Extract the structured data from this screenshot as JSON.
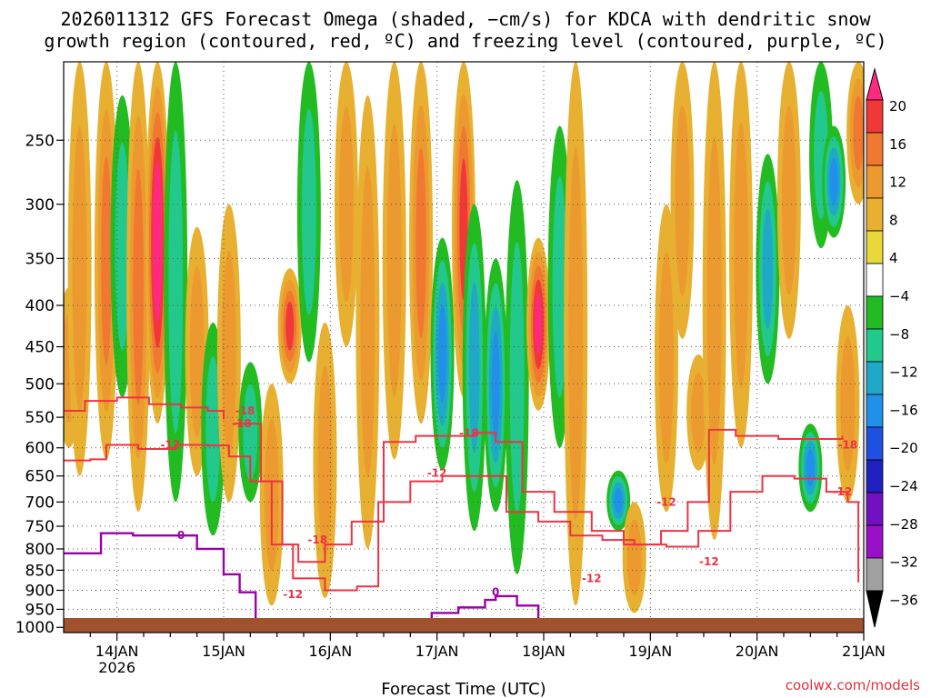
{
  "title_line1": "2026011312 GFS Forecast Omega (shaded, −cm/s) for KDCA with dendritic snow",
  "title_line2": "growth region (contoured, red, ºC) and freezing level (contoured, purple, ºC)",
  "credit": "coolwx.com/models",
  "chart_data": {
    "type": "heatmap",
    "title": "2026011312 GFS Forecast Omega (shaded, −cm/s) for KDCA with dendritic snow growth region (contoured, red, ºC) and freezing level (contoured, purple, ºC)",
    "xlabel": "Forecast Time (UTC)",
    "ylabel": "",
    "x_ticks": [
      "14JAN",
      "15JAN",
      "16JAN",
      "17JAN",
      "18JAN",
      "19JAN",
      "20JAN",
      "21JAN"
    ],
    "x_tick_sublabel": "2026",
    "xlim_days": [
      13.5,
      21.0
    ],
    "y_ticks": [
      250,
      300,
      350,
      400,
      450,
      500,
      550,
      600,
      650,
      700,
      750,
      800,
      850,
      900,
      950,
      1000
    ],
    "ylim_hpa": [
      200,
      1015
    ],
    "colorbar": {
      "levels": [
        "20",
        "16",
        "12",
        "8",
        "4",
        "−4",
        "−8",
        "−12",
        "−16",
        "−20",
        "−24",
        "−28",
        "−32",
        "−36"
      ],
      "colors": [
        "#ff2a80",
        "#f03838",
        "#f07830",
        "#ec9a30",
        "#e8b030",
        "#e8d83a",
        "#ffffff",
        "#22bb22",
        "#22c88c",
        "#20a8c8",
        "#2090e8",
        "#2050e0",
        "#2020c0",
        "#7010c0",
        "#9a10c8",
        "#a0a0a0",
        "#000000"
      ]
    },
    "contour_labels_red": [
      "-18",
      "-12",
      "-12",
      "-18",
      "-12",
      "-12",
      "-18",
      "-12",
      "-18",
      "-12",
      "-12",
      "-18"
    ],
    "contour_labels_purple": [
      "0",
      "0"
    ],
    "omega_columns": [
      {
        "day": 13.55,
        "p_top": 380,
        "p_bot": 600,
        "max": 6
      },
      {
        "day": 13.65,
        "p_top": 200,
        "p_bot": 650,
        "max": 6
      },
      {
        "day": 13.9,
        "p_top": 200,
        "p_bot": 620,
        "max": 10
      },
      {
        "day": 14.05,
        "p_top": 220,
        "p_bot": 520,
        "max": -8
      },
      {
        "day": 14.2,
        "p_top": 200,
        "p_bot": 720,
        "max": 12
      },
      {
        "day": 14.38,
        "p_top": 200,
        "p_bot": 560,
        "max": 22
      },
      {
        "day": 14.55,
        "p_top": 200,
        "p_bot": 700,
        "max": -8
      },
      {
        "day": 14.75,
        "p_top": 320,
        "p_bot": 650,
        "max": 8
      },
      {
        "day": 14.9,
        "p_top": 420,
        "p_bot": 770,
        "max": -8
      },
      {
        "day": 15.05,
        "p_top": 300,
        "p_bot": 700,
        "max": 6
      },
      {
        "day": 15.25,
        "p_top": 470,
        "p_bot": 700,
        "max": -8
      },
      {
        "day": 15.45,
        "p_top": 500,
        "p_bot": 940,
        "max": 6
      },
      {
        "day": 15.62,
        "p_top": 360,
        "p_bot": 500,
        "max": 14
      },
      {
        "day": 15.8,
        "p_top": 200,
        "p_bot": 470,
        "max": -8
      },
      {
        "day": 15.95,
        "p_top": 420,
        "p_bot": 920,
        "max": 6
      },
      {
        "day": 16.15,
        "p_top": 200,
        "p_bot": 450,
        "max": 8
      },
      {
        "day": 16.35,
        "p_top": 220,
        "p_bot": 800,
        "max": 8
      },
      {
        "day": 16.6,
        "p_top": 200,
        "p_bot": 620,
        "max": 6
      },
      {
        "day": 16.85,
        "p_top": 200,
        "p_bot": 560,
        "max": 12
      },
      {
        "day": 17.05,
        "p_top": 330,
        "p_bot": 640,
        "max": -14
      },
      {
        "day": 17.25,
        "p_top": 200,
        "p_bot": 520,
        "max": 14
      },
      {
        "day": 17.35,
        "p_top": 300,
        "p_bot": 760,
        "max": -12
      },
      {
        "day": 17.55,
        "p_top": 350,
        "p_bot": 720,
        "max": -14
      },
      {
        "day": 17.75,
        "p_top": 280,
        "p_bot": 860,
        "max": -8
      },
      {
        "day": 17.95,
        "p_top": 330,
        "p_bot": 540,
        "max": 20
      },
      {
        "day": 18.15,
        "p_top": 240,
        "p_bot": 600,
        "max": -8
      },
      {
        "day": 18.3,
        "p_top": 200,
        "p_bot": 940,
        "max": 6
      },
      {
        "day": 18.7,
        "p_top": 640,
        "p_bot": 760,
        "max": -14
      },
      {
        "day": 18.85,
        "p_top": 700,
        "p_bot": 960,
        "max": 6
      },
      {
        "day": 19.15,
        "p_top": 300,
        "p_bot": 720,
        "max": 6
      },
      {
        "day": 19.3,
        "p_top": 200,
        "p_bot": 440,
        "max": 6
      },
      {
        "day": 19.45,
        "p_top": 460,
        "p_bot": 640,
        "max": 6
      },
      {
        "day": 19.6,
        "p_top": 200,
        "p_bot": 780,
        "max": 8
      },
      {
        "day": 19.85,
        "p_top": 200,
        "p_bot": 600,
        "max": 6
      },
      {
        "day": 20.1,
        "p_top": 260,
        "p_bot": 500,
        "max": -12
      },
      {
        "day": 20.3,
        "p_top": 200,
        "p_bot": 440,
        "max": 6
      },
      {
        "day": 20.5,
        "p_top": 560,
        "p_bot": 720,
        "max": -14
      },
      {
        "day": 20.6,
        "p_top": 200,
        "p_bot": 340,
        "max": -8
      },
      {
        "day": 20.72,
        "p_top": 240,
        "p_bot": 330,
        "max": -14
      },
      {
        "day": 20.85,
        "p_top": 400,
        "p_bot": 700,
        "max": 6
      },
      {
        "day": 20.95,
        "p_top": 200,
        "p_bot": 300,
        "max": 10
      }
    ],
    "dgz_minus12_upper": [
      {
        "day": 13.5,
        "p": 622
      },
      {
        "day": 13.75,
        "p": 620
      },
      {
        "day": 13.9,
        "p": 595
      },
      {
        "day": 14.2,
        "p": 602
      },
      {
        "day": 14.55,
        "p": 595
      },
      {
        "day": 14.85,
        "p": 596
      },
      {
        "day": 15.05,
        "p": 615
      },
      {
        "day": 15.25,
        "p": 660
      },
      {
        "day": 15.45,
        "p": 790
      },
      {
        "day": 15.65,
        "p": 870
      },
      {
        "day": 15.95,
        "p": 900
      },
      {
        "day": 16.25,
        "p": 890
      },
      {
        "day": 16.45,
        "p": 700
      },
      {
        "day": 16.75,
        "p": 660
      },
      {
        "day": 17.05,
        "p": 650
      },
      {
        "day": 17.35,
        "p": 650
      },
      {
        "day": 17.65,
        "p": 720
      },
      {
        "day": 17.95,
        "p": 740
      },
      {
        "day": 18.25,
        "p": 770
      },
      {
        "day": 18.55,
        "p": 780
      },
      {
        "day": 18.85,
        "p": 790
      },
      {
        "day": 19.15,
        "p": 795
      },
      {
        "day": 19.45,
        "p": 760
      },
      {
        "day": 19.75,
        "p": 680
      },
      {
        "day": 20.05,
        "p": 650
      },
      {
        "day": 20.35,
        "p": 655
      },
      {
        "day": 20.65,
        "p": 680
      },
      {
        "day": 20.85,
        "p": 700
      },
      {
        "day": 20.95,
        "p": 880
      }
    ],
    "dgz_minus18_upper": [
      {
        "day": 13.5,
        "p": 540
      },
      {
        "day": 13.7,
        "p": 525
      },
      {
        "day": 14.0,
        "p": 520
      },
      {
        "day": 14.3,
        "p": 530
      },
      {
        "day": 14.6,
        "p": 535
      },
      {
        "day": 14.85,
        "p": 540
      },
      {
        "day": 15.0,
        "p": 553
      }
    ],
    "dgz_minus18_mid": [
      {
        "day": 15.1,
        "p": 560
      },
      {
        "day": 15.35,
        "p": 660
      },
      {
        "day": 15.55,
        "p": 790
      },
      {
        "day": 15.7,
        "p": 830
      },
      {
        "day": 15.95,
        "p": 790
      },
      {
        "day": 16.2,
        "p": 740
      },
      {
        "day": 16.5,
        "p": 590
      },
      {
        "day": 16.8,
        "p": 580
      },
      {
        "day": 17.1,
        "p": 580
      },
      {
        "day": 17.35,
        "p": 575
      },
      {
        "day": 17.55,
        "p": 590
      },
      {
        "day": 17.8,
        "p": 680
      },
      {
        "day": 18.1,
        "p": 720
      },
      {
        "day": 18.45,
        "p": 760
      },
      {
        "day": 18.75,
        "p": 790
      },
      {
        "day": 19.1,
        "p": 760
      },
      {
        "day": 19.35,
        "p": 700
      },
      {
        "day": 19.55,
        "p": 570
      },
      {
        "day": 19.8,
        "p": 580
      },
      {
        "day": 20.2,
        "p": 585
      },
      {
        "day": 20.55,
        "p": 585
      },
      {
        "day": 20.8,
        "p": 580
      }
    ],
    "freezing_level": [
      {
        "day": 13.5,
        "p": 810
      },
      {
        "day": 13.65,
        "p": 810
      },
      {
        "day": 13.85,
        "p": 765
      },
      {
        "day": 14.15,
        "p": 770
      },
      {
        "day": 14.45,
        "p": 770
      },
      {
        "day": 14.75,
        "p": 800
      },
      {
        "day": 15.0,
        "p": 860
      },
      {
        "day": 15.15,
        "p": 905
      },
      {
        "day": 15.3,
        "p": 1010
      }
    ],
    "freezing_level_2": [
      {
        "day": 16.75,
        "p": 1010
      },
      {
        "day": 16.95,
        "p": 960
      },
      {
        "day": 17.2,
        "p": 945
      },
      {
        "day": 17.45,
        "p": 925
      },
      {
        "day": 17.55,
        "p": 915
      },
      {
        "day": 17.75,
        "p": 940
      },
      {
        "day": 17.95,
        "p": 990
      },
      {
        "day": 18.1,
        "p": 1010
      }
    ],
    "terrain_top_hpa": 1004
  }
}
